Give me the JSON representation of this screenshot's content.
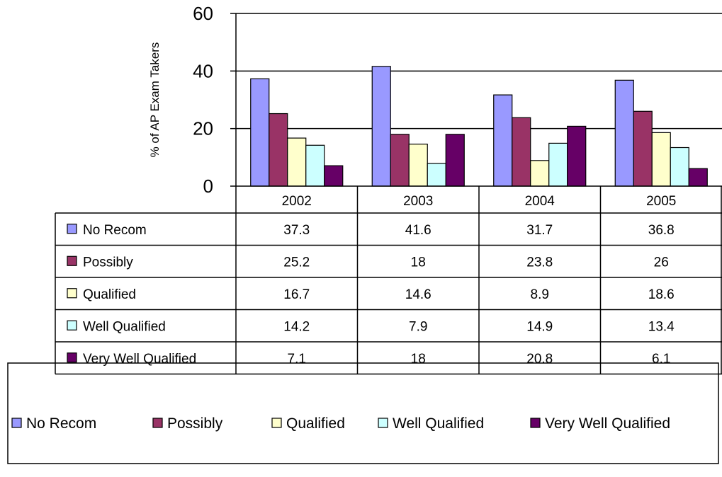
{
  "chart_data": {
    "type": "bar",
    "title": "",
    "xlabel": "",
    "ylabel": "% of AP Exam Takers",
    "ylim": [
      0,
      60
    ],
    "yticks": [
      0,
      20,
      40,
      60
    ],
    "grid": true,
    "data_table": true,
    "legend_placement": "bottom",
    "categories": [
      "2002",
      "2003",
      "2004",
      "2005"
    ],
    "series": [
      {
        "name": "No Recom",
        "values": [
          37.3,
          41.6,
          31.7,
          36.8
        ],
        "color": "#9999FF"
      },
      {
        "name": "Possibly",
        "values": [
          25.2,
          18,
          23.8,
          26
        ],
        "color": "#993366"
      },
      {
        "name": "Qualified",
        "values": [
          16.7,
          14.6,
          8.9,
          18.6
        ],
        "color": "#FFFFCC"
      },
      {
        "name": "Well Qualified",
        "values": [
          14.2,
          7.9,
          14.9,
          13.4
        ],
        "color": "#CCFFFF"
      },
      {
        "name": "Very Well Qualified",
        "values": [
          7.1,
          18,
          20.8,
          6.1
        ],
        "color": "#660066"
      }
    ]
  }
}
